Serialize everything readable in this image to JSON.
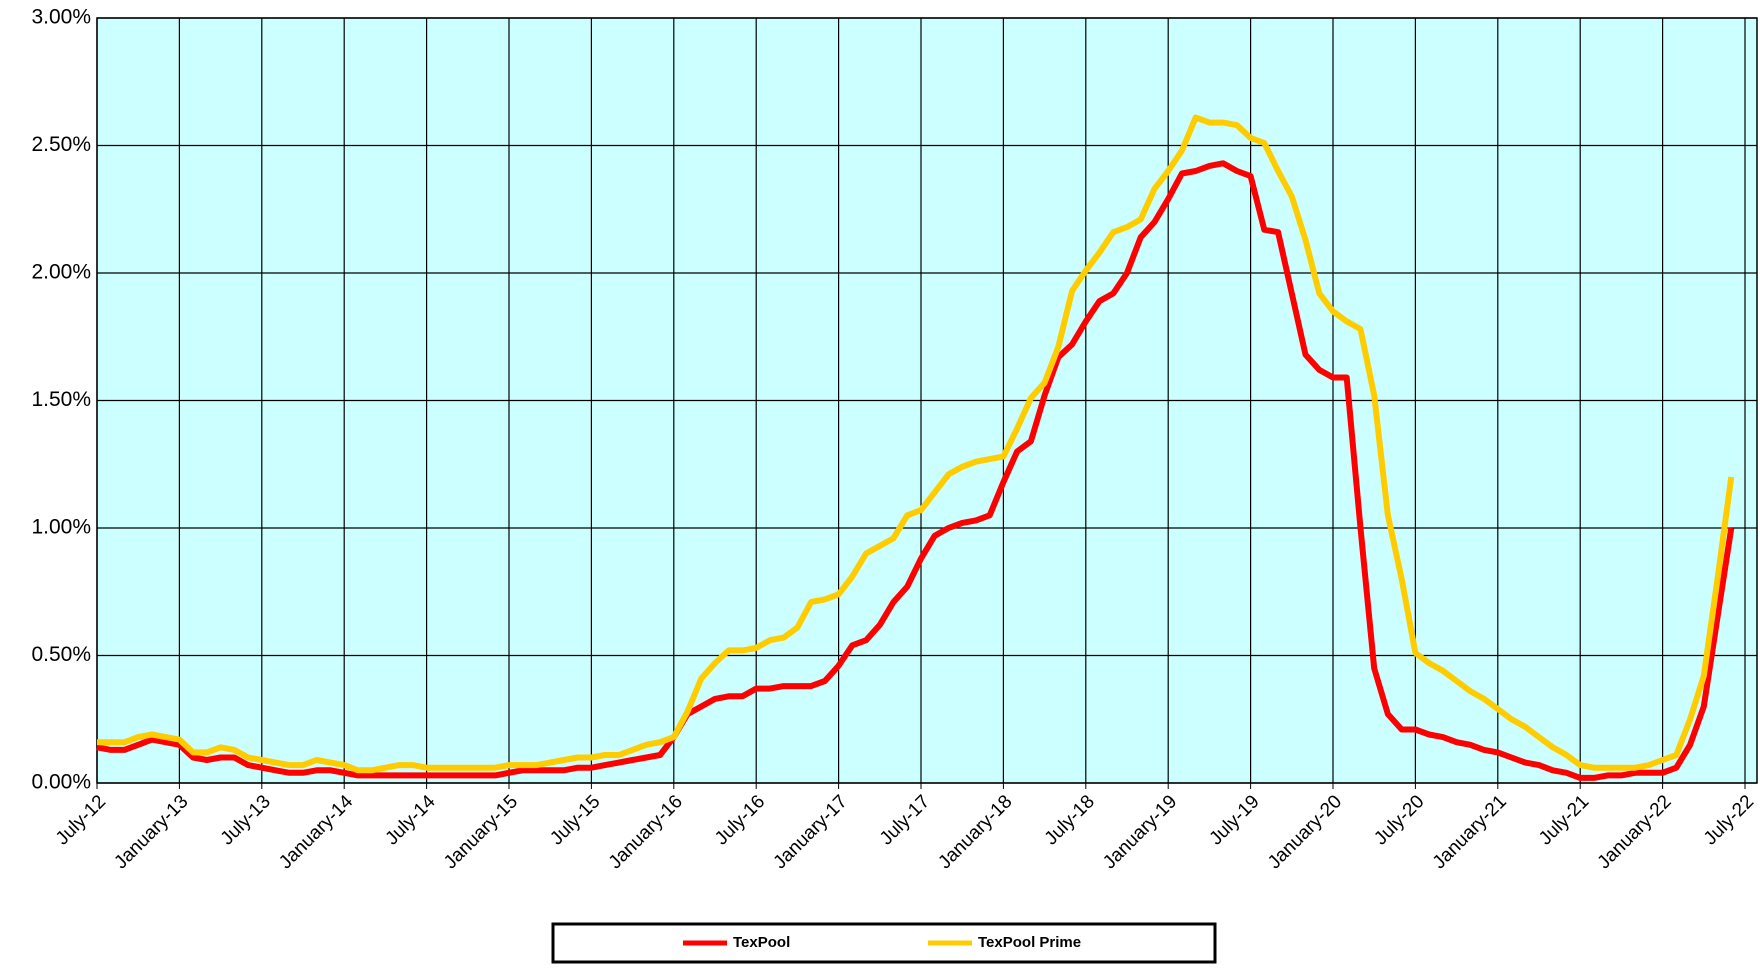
{
  "chart_data": {
    "type": "line",
    "categories": [
      "July-12",
      null,
      null,
      null,
      null,
      null,
      "January-13",
      null,
      null,
      null,
      null,
      null,
      "July-13",
      null,
      null,
      null,
      null,
      null,
      "January-14",
      null,
      null,
      null,
      null,
      null,
      "July-14",
      null,
      null,
      null,
      null,
      null,
      "January-15",
      null,
      null,
      null,
      null,
      null,
      "July-15",
      null,
      null,
      null,
      null,
      null,
      "January-16",
      null,
      null,
      null,
      null,
      null,
      "July-16",
      null,
      null,
      null,
      null,
      null,
      "January-17",
      null,
      null,
      null,
      null,
      null,
      "July-17",
      null,
      null,
      null,
      null,
      null,
      "January-18",
      null,
      null,
      null,
      null,
      null,
      "July-18",
      null,
      null,
      null,
      null,
      null,
      "January-19",
      null,
      null,
      null,
      null,
      null,
      "July-19",
      null,
      null,
      null,
      null,
      null,
      "January-20",
      null,
      null,
      null,
      null,
      null,
      "July-20",
      null,
      null,
      null,
      null,
      null,
      "January-21",
      null,
      null,
      null,
      null,
      null,
      "July-21",
      null,
      null,
      null,
      null,
      null,
      "January-22",
      null,
      null,
      null,
      null,
      null,
      "July-22"
    ],
    "series": [
      {
        "name": "TexPool",
        "color": "#ff0000",
        "values": [
          0.14,
          0.13,
          0.13,
          0.15,
          0.17,
          0.16,
          0.15,
          0.1,
          0.09,
          0.1,
          0.1,
          0.07,
          0.06,
          0.05,
          0.04,
          0.04,
          0.05,
          0.05,
          0.04,
          0.03,
          0.03,
          0.03,
          0.03,
          0.03,
          0.03,
          0.03,
          0.03,
          0.03,
          0.03,
          0.03,
          0.04,
          0.05,
          0.05,
          0.05,
          0.05,
          0.06,
          0.06,
          0.07,
          0.08,
          0.09,
          0.1,
          0.11,
          0.18,
          0.27,
          0.3,
          0.33,
          0.34,
          0.34,
          0.37,
          0.37,
          0.38,
          0.38,
          0.38,
          0.4,
          0.46,
          0.54,
          0.56,
          0.62,
          0.71,
          0.77,
          0.88,
          0.97,
          1.0,
          1.02,
          1.03,
          1.05,
          1.18,
          1.3,
          1.34,
          1.52,
          1.67,
          1.72,
          1.81,
          1.89,
          1.92,
          2.0,
          2.14,
          2.2,
          2.29,
          2.39,
          2.4,
          2.42,
          2.43,
          2.4,
          2.38,
          2.17,
          2.16,
          1.92,
          1.68,
          1.62,
          1.59,
          1.59,
          1.0,
          0.45,
          0.27,
          0.21,
          0.21,
          0.19,
          0.18,
          0.16,
          0.15,
          0.13,
          0.12,
          0.1,
          0.08,
          0.07,
          0.05,
          0.04,
          0.02,
          0.02,
          0.03,
          0.03,
          0.04,
          0.04,
          0.04,
          0.06,
          0.15,
          0.3,
          0.65,
          1.0,
          null
        ]
      },
      {
        "name": "TexPool Prime",
        "color": "#ffcc00",
        "values": [
          0.16,
          0.16,
          0.16,
          0.18,
          0.19,
          0.18,
          0.17,
          0.12,
          0.12,
          0.14,
          0.13,
          0.1,
          0.09,
          0.08,
          0.07,
          0.07,
          0.09,
          0.08,
          0.07,
          0.05,
          0.05,
          0.06,
          0.07,
          0.07,
          0.06,
          0.06,
          0.06,
          0.06,
          0.06,
          0.06,
          0.07,
          0.07,
          0.07,
          0.08,
          0.09,
          0.1,
          0.1,
          0.11,
          0.11,
          0.13,
          0.15,
          0.16,
          0.18,
          0.28,
          0.41,
          0.47,
          0.52,
          0.52,
          0.53,
          0.56,
          0.57,
          0.61,
          0.71,
          0.72,
          0.74,
          0.81,
          0.9,
          0.93,
          0.96,
          1.05,
          1.07,
          1.14,
          1.21,
          1.24,
          1.26,
          1.27,
          1.28,
          1.39,
          1.51,
          1.57,
          1.71,
          1.93,
          2.01,
          2.08,
          2.16,
          2.18,
          2.21,
          2.33,
          2.4,
          2.48,
          2.61,
          2.59,
          2.59,
          2.58,
          2.53,
          2.51,
          2.4,
          2.3,
          2.13,
          1.92,
          1.85,
          1.81,
          1.78,
          1.52,
          1.05,
          0.8,
          0.51,
          0.47,
          0.44,
          0.4,
          0.36,
          0.33,
          0.29,
          0.25,
          0.22,
          0.18,
          0.14,
          0.11,
          0.07,
          0.06,
          0.06,
          0.06,
          0.06,
          0.07,
          0.09,
          0.11,
          0.25,
          0.42,
          0.8,
          1.2,
          null
        ]
      }
    ],
    "ylim": [
      0,
      3
    ],
    "yticks": [
      {
        "value": 0,
        "label": "0.00%"
      },
      {
        "value": 0.5,
        "label": "0.50%"
      },
      {
        "value": 1,
        "label": "1.00%"
      },
      {
        "value": 1.5,
        "label": "1.50%"
      },
      {
        "value": 2,
        "label": "2.00%"
      },
      {
        "value": 2.5,
        "label": "2.50%"
      },
      {
        "value": 3,
        "label": "3.00%"
      }
    ],
    "grid": true,
    "legend": "bottom"
  }
}
